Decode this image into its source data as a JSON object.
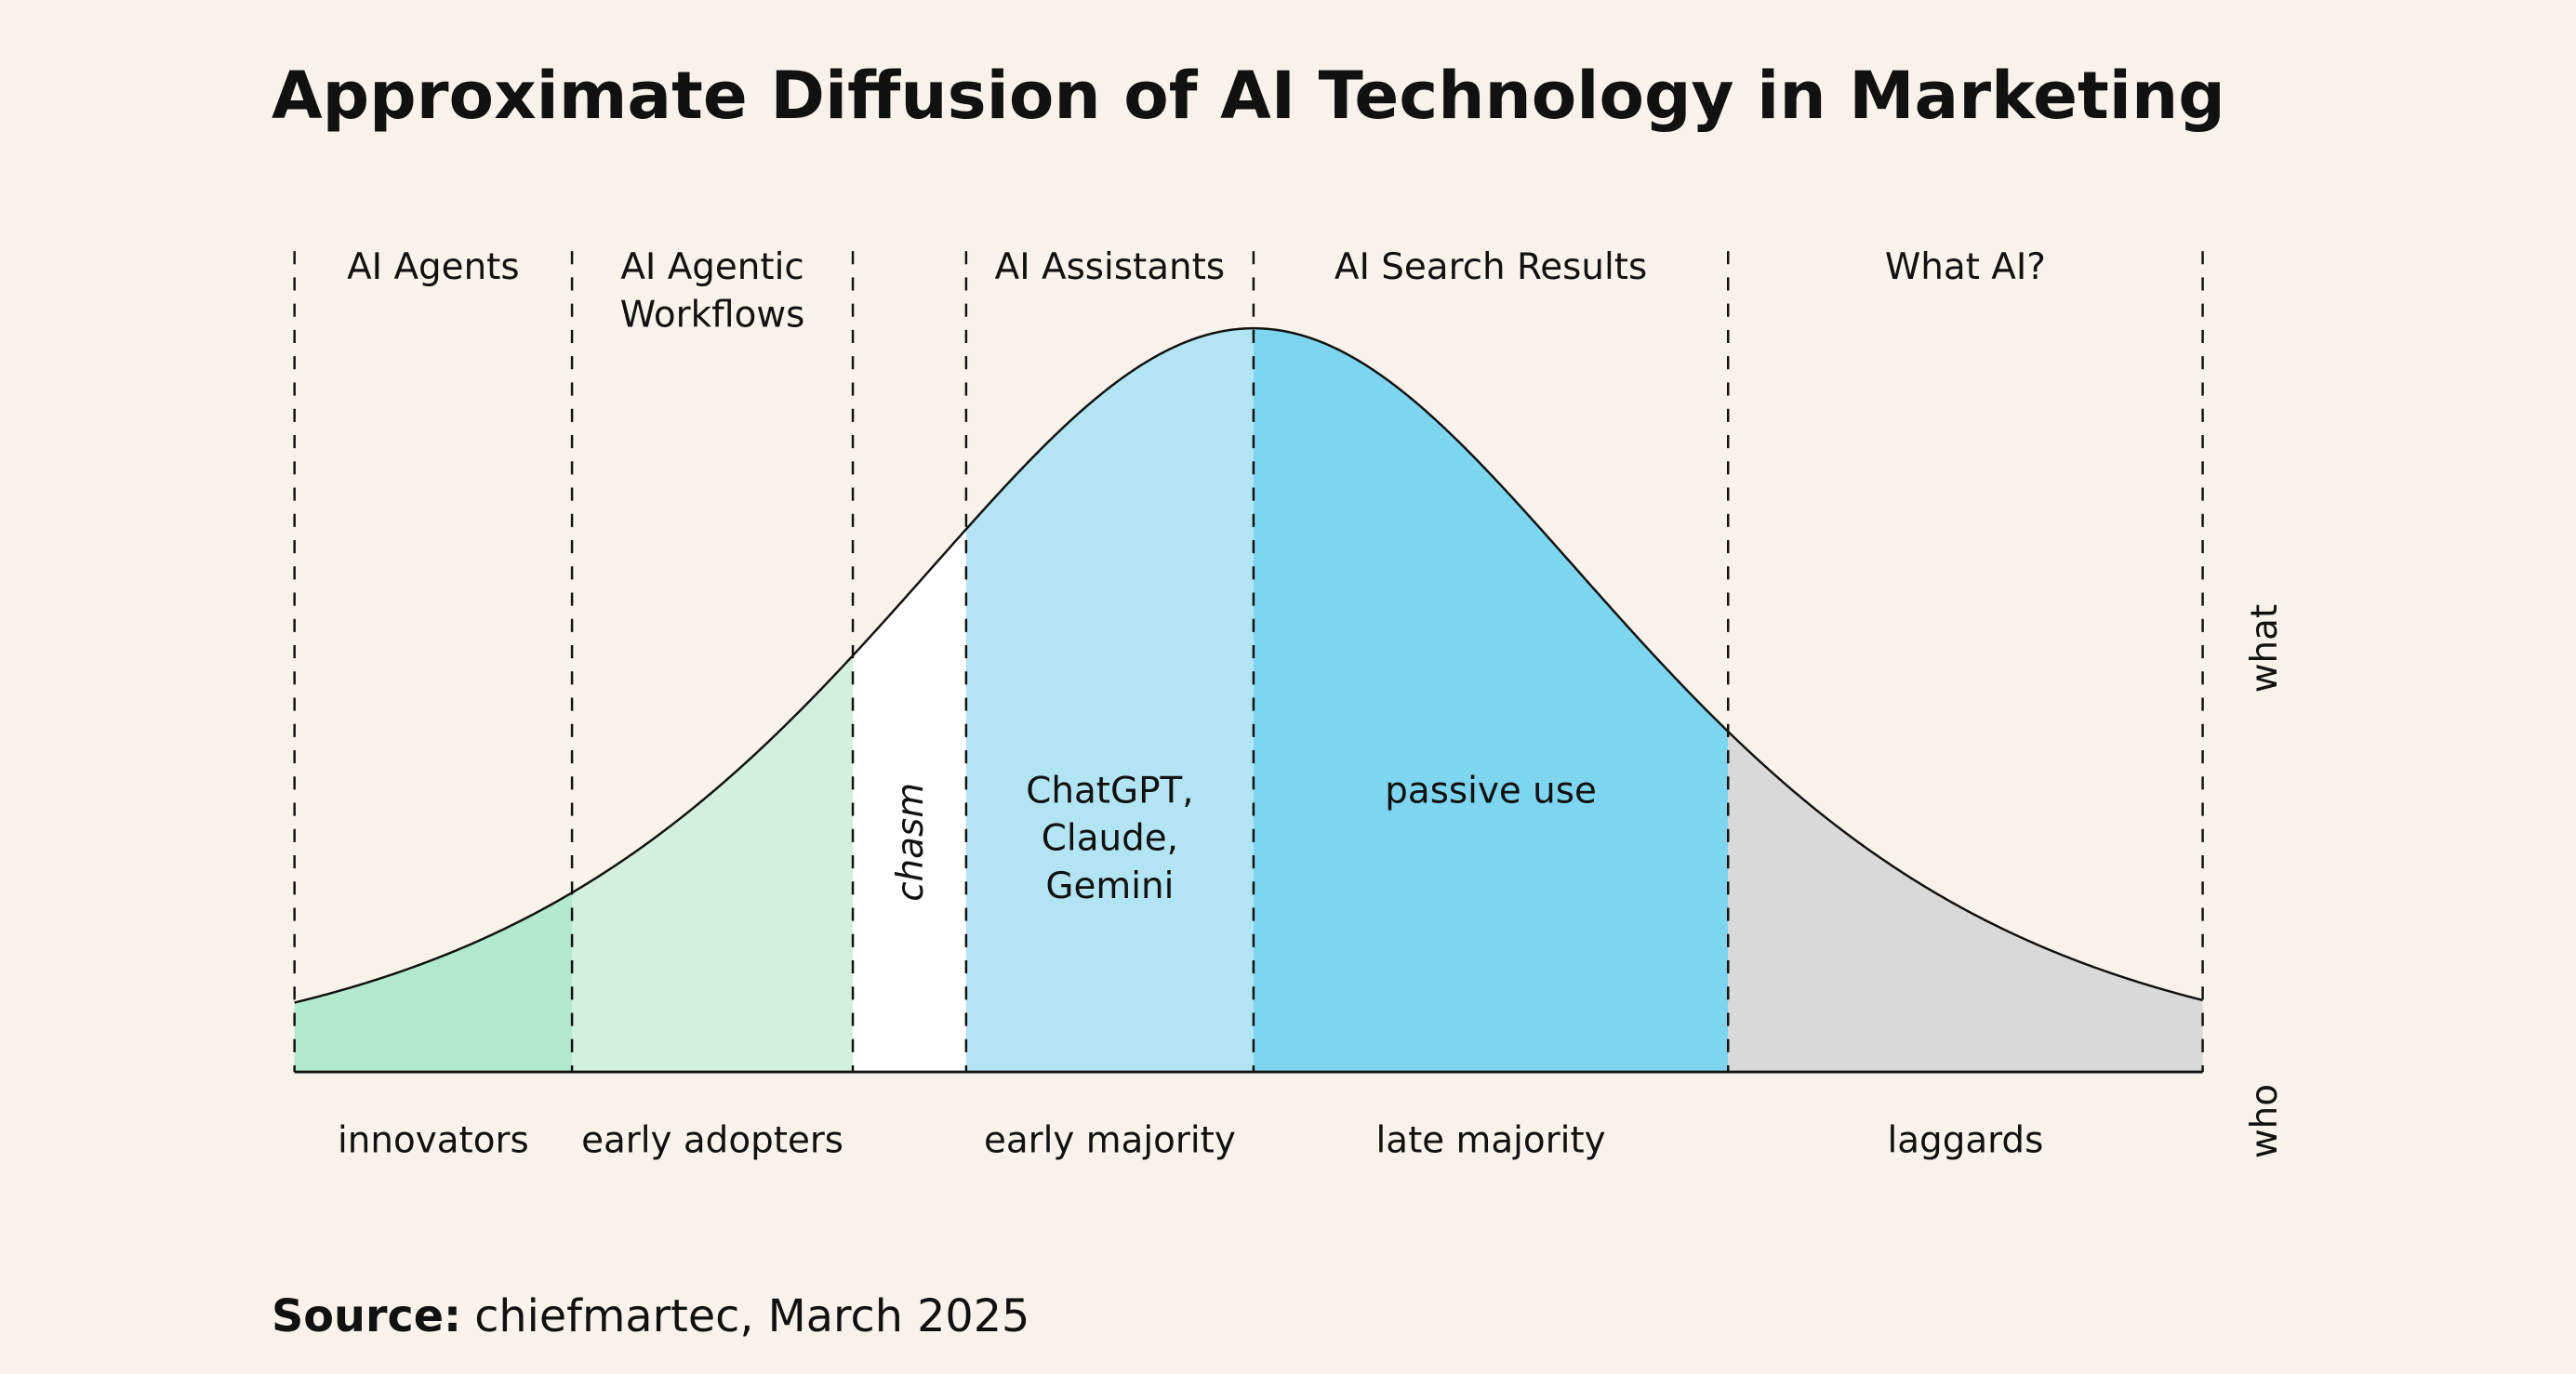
{
  "title": "Approximate Diffusion of AI Technology in Marketing",
  "segments": [
    {
      "top": [
        "AI Agents"
      ],
      "bottom": "innovators",
      "color": "#b2e8d0"
    },
    {
      "top": [
        "AI Agentic",
        "Workflows"
      ],
      "bottom": "early adopters",
      "color": "#d3efe0"
    },
    {
      "inner_rotated": "chasm",
      "color": "#ffffff"
    },
    {
      "top": [
        "AI Assistants"
      ],
      "bottom": "early majority",
      "inner": [
        "ChatGPT,",
        "Claude,",
        "Gemini"
      ],
      "color": "#b2e4f3"
    },
    {
      "top": [
        "AI Search Results"
      ],
      "bottom": "late majority",
      "inner": [
        "passive use"
      ],
      "color": "#7dd5ef"
    },
    {
      "top": [
        "What AI?"
      ],
      "bottom": "laggards",
      "color": "#d9d9d9"
    }
  ],
  "axis_labels": {
    "upper": "what",
    "lower": "who"
  },
  "source": {
    "label": "Source:",
    "text": "chiefmartec, March 2025"
  }
}
